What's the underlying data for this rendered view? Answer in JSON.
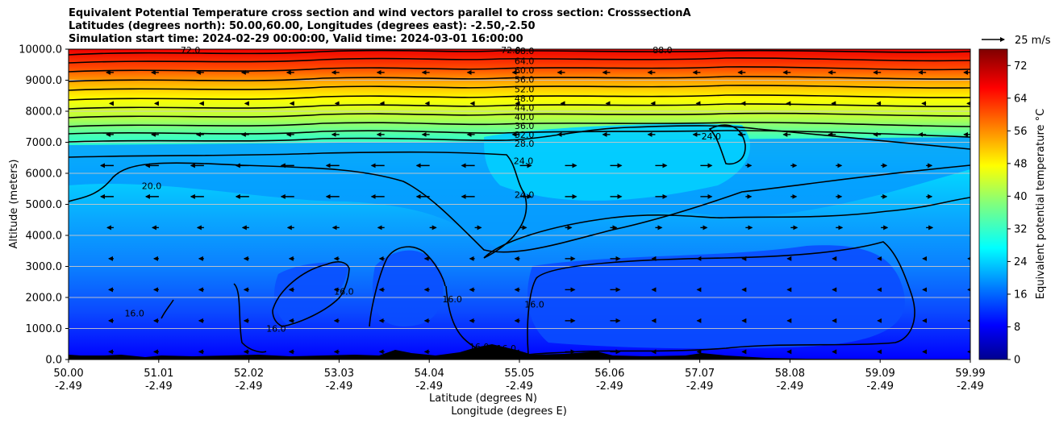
{
  "title_lines": [
    "Equivalent Potential Temperature cross section and wind vectors parallel to cross section: CrosssectionA",
    "Latitudes (degrees north): 50.00,60.00, Longitudes (degrees east): -2.50,-2.50",
    "Simulation start time: 2024-02-29 00:00:00, Valid time: 2024-03-01 16:00:00"
  ],
  "chart_data": {
    "type": "contour",
    "title": "Equivalent Potential Temperature cross section and wind vectors parallel to cross section: CrosssectionA",
    "xlabel": "Latitude (degrees N)",
    "xlabel2": "Longitude (degrees E)",
    "ylabel": "Altitude (meters)",
    "xlim": [
      50.0,
      59.99
    ],
    "ylim": [
      0,
      10000
    ],
    "x_ticks": [
      {
        "lat": "50.00",
        "lon": "-2.49"
      },
      {
        "lat": "51.01",
        "lon": "-2.49"
      },
      {
        "lat": "52.02",
        "lon": "-2.49"
      },
      {
        "lat": "53.03",
        "lon": "-2.49"
      },
      {
        "lat": "54.04",
        "lon": "-2.49"
      },
      {
        "lat": "55.05",
        "lon": "-2.49"
      },
      {
        "lat": "56.06",
        "lon": "-2.49"
      },
      {
        "lat": "57.07",
        "lon": "-2.49"
      },
      {
        "lat": "58.08",
        "lon": "-2.49"
      },
      {
        "lat": "59.09",
        "lon": "-2.49"
      },
      {
        "lat": "59.99",
        "lon": "-2.49"
      }
    ],
    "y_ticks": [
      "0.0",
      "1000.0",
      "2000.0",
      "3000.0",
      "4000.0",
      "5000.0",
      "6000.0",
      "7000.0",
      "8000.0",
      "9000.0",
      "10000.0"
    ],
    "grid": "horizontal",
    "colorbar": {
      "label": "Equivalent potential temperature °C",
      "range": [
        0,
        76
      ],
      "ticks": [
        "0",
        "8",
        "16",
        "24",
        "32",
        "40",
        "48",
        "56",
        "64",
        "72"
      ]
    },
    "quiver_key": "25 m/s",
    "contour_labels": [
      {
        "text": "68.0",
        "x": 55.05,
        "y": 9950
      },
      {
        "text": "64.0",
        "x": 55.05,
        "y": 9620
      },
      {
        "text": "60.0",
        "x": 55.05,
        "y": 9320
      },
      {
        "text": "56.0",
        "x": 55.05,
        "y": 9020
      },
      {
        "text": "52.0",
        "x": 55.05,
        "y": 8720
      },
      {
        "text": "48.0",
        "x": 55.05,
        "y": 8420
      },
      {
        "text": "44.0",
        "x": 55.05,
        "y": 8120
      },
      {
        "text": "40.0",
        "x": 55.05,
        "y": 7820
      },
      {
        "text": "36.0",
        "x": 55.05,
        "y": 7530
      },
      {
        "text": "32.0",
        "x": 55.05,
        "y": 7250
      },
      {
        "text": "28.0",
        "x": 55.05,
        "y": 6960
      },
      {
        "text": "72.0",
        "x": 51.35,
        "y": 9970
      },
      {
        "text": "72.0",
        "x": 54.9,
        "y": 9970
      },
      {
        "text": "88.0",
        "x": 56.58,
        "y": 9970
      },
      {
        "text": "24.0",
        "x": 55.04,
        "y": 6400
      },
      {
        "text": "24.0",
        "x": 55.05,
        "y": 5310
      },
      {
        "text": "24.0",
        "x": 57.12,
        "y": 7200
      },
      {
        "text": "20.0",
        "x": 50.92,
        "y": 5600
      },
      {
        "text": "16.0",
        "x": 50.73,
        "y": 1500
      },
      {
        "text": "16.0",
        "x": 52.3,
        "y": 1000
      },
      {
        "text": "16.0",
        "x": 53.05,
        "y": 2200
      },
      {
        "text": "16.0",
        "x": 54.25,
        "y": 1950
      },
      {
        "text": "16.0",
        "x": 55.16,
        "y": 1780
      },
      {
        "text": "16.0",
        "x": 54.55,
        "y": 420
      },
      {
        "text": "16.0",
        "x": 54.85,
        "y": 360
      }
    ]
  }
}
